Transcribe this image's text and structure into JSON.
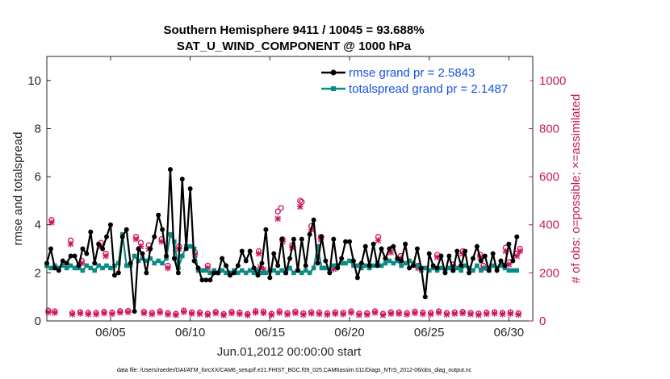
{
  "chart_data": {
    "type": "line",
    "title_line1": "Southern Hemisphere 9411 / 10045 = 93.688%",
    "title_line2": "SAT_U_WIND_COMPONENT @ 1000 hPa",
    "xlabel": "Jun.01,2012 00:00:00 start",
    "ylabel_left": "rmse and totalspread",
    "ylabel_right": "# of obs: o=possible; ×=assimilated",
    "xlim": [
      1,
      31.5
    ],
    "ylim_left": [
      0,
      11
    ],
    "ylim_right": [
      0,
      1100
    ],
    "x_tick_values": [
      5,
      10,
      15,
      20,
      25,
      30
    ],
    "x_tick_labels": [
      "06/05",
      "06/10",
      "06/15",
      "06/20",
      "06/25",
      "06/30"
    ],
    "y_left_ticks": [
      "0",
      "2",
      "4",
      "6",
      "8",
      "10"
    ],
    "y_right_ticks": [
      "0",
      "200",
      "400",
      "600",
      "800",
      "1000"
    ],
    "footer": "data file: /Users/raeder/DAI/ATM_forcXX/CAM6_setup/f.e21.FHIST_BGC.f09_025.CAM6assim.011/Diags_NTrS_2012-06/obs_diag_output.nc",
    "colors": {
      "rmse": "#000000",
      "spread": "#0e8a85",
      "obs": "#d1105c",
      "legend_text": "#1553e0",
      "axis": "#262626"
    },
    "series": [
      {
        "name": "rmse grand pr = 2.5843",
        "x": [
          1.0,
          1.25,
          1.5,
          1.75,
          2.0,
          2.25,
          2.5,
          2.75,
          3.0,
          3.25,
          3.5,
          3.75,
          4.0,
          4.25,
          4.5,
          4.75,
          5.0,
          5.25,
          5.5,
          5.75,
          6.0,
          6.25,
          6.5,
          6.75,
          7.0,
          7.25,
          7.5,
          7.75,
          8.0,
          8.25,
          8.5,
          8.75,
          9.0,
          9.25,
          9.5,
          9.75,
          10.0,
          10.25,
          10.5,
          10.75,
          11.0,
          11.25,
          11.5,
          11.75,
          12.0,
          12.25,
          12.5,
          12.75,
          13.0,
          13.25,
          13.5,
          13.75,
          14.0,
          14.25,
          14.5,
          14.75,
          15.0,
          15.25,
          15.5,
          15.75,
          16.0,
          16.25,
          16.5,
          16.75,
          17.0,
          17.25,
          17.5,
          17.75,
          18.0,
          18.25,
          18.5,
          18.75,
          19.0,
          19.25,
          19.5,
          19.75,
          20.0,
          20.25,
          20.5,
          20.75,
          21.0,
          21.25,
          21.5,
          21.75,
          22.0,
          22.25,
          22.5,
          22.75,
          23.0,
          23.25,
          23.5,
          23.75,
          24.0,
          24.25,
          24.5,
          24.75,
          25.0,
          25.25,
          25.5,
          25.75,
          26.0,
          26.25,
          26.5,
          26.75,
          27.0,
          27.25,
          27.5,
          27.75,
          28.0,
          28.25,
          28.5,
          28.75,
          29.0,
          29.25,
          29.5,
          29.75,
          30.0,
          30.25,
          30.5
        ],
        "values": [
          2.4,
          3.0,
          2.2,
          2.1,
          2.5,
          2.4,
          2.7,
          2.7,
          2.3,
          3.0,
          2.8,
          3.7,
          2.4,
          3.2,
          3.0,
          3.5,
          4.0,
          1.9,
          2.0,
          3.5,
          3.8,
          2.4,
          0.4,
          3.0,
          2.8,
          2.0,
          3.0,
          3.5,
          4.4,
          3.8,
          2.7,
          6.3,
          2.6,
          2.0,
          5.9,
          3.0,
          5.5,
          2.5,
          2.2,
          1.7,
          1.7,
          1.7,
          2.0,
          2.0,
          2.6,
          2.3,
          1.9,
          2.0,
          2.3,
          2.9,
          2.5,
          2.9,
          2.2,
          1.9,
          2.4,
          3.8,
          1.8,
          2.8,
          2.3,
          3.4,
          2.0,
          2.6,
          3.4,
          2.1,
          3.4,
          2.3,
          3.6,
          4.2,
          2.4,
          3.5,
          2.5,
          2.0,
          3.4,
          2.2,
          2.6,
          3.3,
          3.3,
          2.5,
          1.8,
          2.4,
          3.1,
          2.3,
          3.2,
          2.3,
          3.0,
          2.6,
          3.0,
          3.1,
          2.6,
          2.5,
          3.2,
          2.2,
          2.3,
          3.0,
          2.2,
          1.0,
          2.8,
          2.3,
          2.2,
          2.7,
          2.0,
          2.7,
          2.1,
          2.9,
          2.3,
          2.9,
          2.0,
          2.6,
          3.1,
          2.5,
          2.7,
          2.1,
          2.8,
          2.1,
          2.5,
          2.3,
          3.2,
          2.5,
          3.5
        ]
      },
      {
        "name": "totalspread grand pr = 2.1487",
        "x": [
          1.0,
          1.25,
          1.5,
          1.75,
          2.0,
          2.25,
          2.5,
          2.75,
          3.0,
          3.25,
          3.5,
          3.75,
          4.0,
          4.25,
          4.5,
          4.75,
          5.0,
          5.25,
          5.5,
          5.75,
          6.0,
          6.25,
          6.5,
          6.75,
          7.0,
          7.25,
          7.5,
          7.75,
          8.0,
          8.25,
          8.5,
          8.75,
          9.0,
          9.25,
          9.5,
          9.75,
          10.0,
          10.25,
          10.5,
          10.75,
          11.0,
          11.25,
          11.5,
          11.75,
          12.0,
          12.25,
          12.5,
          12.75,
          13.0,
          13.25,
          13.5,
          13.75,
          14.0,
          14.25,
          14.5,
          14.75,
          15.0,
          15.25,
          15.5,
          15.75,
          16.0,
          16.25,
          16.5,
          16.75,
          17.0,
          17.25,
          17.5,
          17.75,
          18.0,
          18.25,
          18.5,
          18.75,
          19.0,
          19.25,
          19.5,
          19.75,
          20.0,
          20.25,
          20.5,
          20.75,
          21.0,
          21.25,
          21.5,
          21.75,
          22.0,
          22.25,
          22.5,
          22.75,
          23.0,
          23.25,
          23.5,
          23.75,
          24.0,
          24.25,
          24.5,
          24.75,
          25.0,
          25.25,
          25.5,
          25.75,
          26.0,
          26.25,
          26.5,
          26.75,
          27.0,
          27.25,
          27.5,
          27.75,
          28.0,
          28.25,
          28.5,
          28.75,
          29.0,
          29.25,
          29.5,
          29.75,
          30.0,
          30.25,
          30.5
        ],
        "values": [
          2.3,
          2.2,
          2.3,
          2.2,
          2.3,
          2.2,
          2.3,
          2.2,
          2.2,
          2.1,
          2.3,
          2.2,
          2.1,
          2.3,
          2.2,
          2.3,
          2.2,
          2.3,
          2.4,
          3.6,
          2.3,
          2.3,
          2.7,
          2.5,
          2.6,
          2.5,
          2.6,
          2.4,
          2.5,
          2.4,
          2.6,
          3.6,
          3.3,
          2.2,
          2.7,
          3.1,
          3.1,
          3.0,
          2.1,
          2.1,
          2.1,
          2.0,
          2.1,
          2.0,
          2.1,
          2.0,
          2.0,
          2.1,
          2.0,
          2.1,
          2.0,
          2.1,
          2.0,
          2.1,
          2.0,
          2.0,
          2.1,
          2.1,
          2.0,
          2.1,
          2.0,
          2.2,
          2.0,
          2.1,
          2.0,
          2.1,
          2.0,
          2.2,
          3.1,
          2.2,
          2.2,
          2.1,
          2.3,
          2.3,
          2.4,
          2.4,
          2.5,
          2.3,
          2.3,
          2.2,
          2.3,
          2.2,
          2.3,
          2.4,
          2.3,
          2.4,
          2.5,
          2.4,
          2.5,
          2.3,
          2.4,
          2.5,
          2.4,
          2.3,
          2.1,
          2.2,
          2.1,
          2.2,
          2.1,
          2.2,
          2.1,
          2.2,
          2.1,
          2.2,
          2.1,
          2.3,
          2.2,
          2.1,
          2.3,
          2.1,
          2.2,
          2.1,
          2.3,
          2.2,
          2.3,
          2.2,
          2.1,
          2.1,
          2.1
        ]
      }
    ],
    "obs_series": [
      {
        "name": "possible",
        "marker": "o",
        "points": [
          [
            1.1,
            43
          ],
          [
            1.5,
            40
          ],
          [
            2.6,
            33
          ],
          [
            3.1,
            37
          ],
          [
            3.6,
            34
          ],
          [
            4.1,
            34
          ],
          [
            4.6,
            38
          ],
          [
            5.1,
            35
          ],
          [
            5.6,
            41
          ],
          [
            6.1,
            42
          ],
          [
            7.1,
            38
          ],
          [
            7.6,
            34
          ],
          [
            8.1,
            40
          ],
          [
            8.6,
            33
          ],
          [
            9.1,
            30
          ],
          [
            9.6,
            43
          ],
          [
            10.1,
            36
          ],
          [
            10.6,
            35
          ],
          [
            11.1,
            30
          ],
          [
            11.6,
            38
          ],
          [
            12.1,
            29
          ],
          [
            12.6,
            38
          ],
          [
            13.1,
            35
          ],
          [
            13.6,
            29
          ],
          [
            14.1,
            41
          ],
          [
            14.6,
            39
          ],
          [
            15.1,
            30
          ],
          [
            15.6,
            40
          ],
          [
            16.1,
            33
          ],
          [
            16.6,
            39
          ],
          [
            17.1,
            32
          ],
          [
            17.6,
            37
          ],
          [
            18.1,
            35
          ],
          [
            18.6,
            32
          ],
          [
            19.1,
            36
          ],
          [
            19.6,
            34
          ],
          [
            20.1,
            40
          ],
          [
            20.6,
            31
          ],
          [
            21.1,
            32
          ],
          [
            21.6,
            40
          ],
          [
            22.1,
            30
          ],
          [
            22.6,
            36
          ],
          [
            23.1,
            36
          ],
          [
            23.6,
            33
          ],
          [
            24.1,
            39
          ],
          [
            24.6,
            35
          ],
          [
            25.1,
            34
          ],
          [
            25.6,
            40
          ],
          [
            26.1,
            33
          ],
          [
            26.6,
            36
          ],
          [
            27.1,
            38
          ],
          [
            27.6,
            34
          ],
          [
            28.1,
            31
          ],
          [
            28.6,
            35
          ],
          [
            29.1,
            37
          ],
          [
            29.6,
            34
          ],
          [
            30.1,
            36
          ],
          [
            30.6,
            32
          ],
          [
            1.3,
            420
          ],
          [
            2.5,
            335
          ],
          [
            3.2,
            250
          ],
          [
            4.4,
            325
          ],
          [
            4.7,
            280
          ],
          [
            6.6,
            350
          ],
          [
            6.9,
            325
          ],
          [
            7.4,
            315
          ],
          [
            8.2,
            340
          ],
          [
            8.6,
            230
          ],
          [
            9.3,
            310
          ],
          [
            10.3,
            285
          ],
          [
            11.1,
            230
          ],
          [
            14.3,
            290
          ],
          [
            15.5,
            455
          ],
          [
            15.7,
            470
          ],
          [
            15.8,
            340
          ],
          [
            16.9,
            500
          ],
          [
            16.4,
            315
          ],
          [
            17.0,
            495
          ],
          [
            17.6,
            395
          ],
          [
            18.2,
            350
          ],
          [
            19.0,
            225
          ],
          [
            21.8,
            350
          ],
          [
            22.6,
            300
          ],
          [
            23.2,
            270
          ],
          [
            24.3,
            230
          ],
          [
            25.5,
            275
          ],
          [
            26.5,
            235
          ],
          [
            27.1,
            290
          ],
          [
            28.2,
            275
          ],
          [
            28.4,
            230
          ],
          [
            29.8,
            305
          ],
          [
            30.0,
            245
          ],
          [
            30.5,
            280
          ],
          [
            30.7,
            300
          ]
        ]
      },
      {
        "name": "assimilated",
        "marker": "x",
        "points": [
          [
            1.1,
            36
          ],
          [
            1.5,
            34
          ],
          [
            2.6,
            28
          ],
          [
            3.1,
            31
          ],
          [
            3.6,
            28
          ],
          [
            4.1,
            28
          ],
          [
            4.6,
            32
          ],
          [
            5.1,
            29
          ],
          [
            5.6,
            35
          ],
          [
            6.1,
            36
          ],
          [
            7.1,
            32
          ],
          [
            7.6,
            28
          ],
          [
            8.1,
            34
          ],
          [
            8.6,
            27
          ],
          [
            9.1,
            25
          ],
          [
            9.6,
            37
          ],
          [
            10.1,
            30
          ],
          [
            10.6,
            29
          ],
          [
            11.1,
            25
          ],
          [
            11.6,
            32
          ],
          [
            12.1,
            24
          ],
          [
            12.6,
            32
          ],
          [
            13.1,
            29
          ],
          [
            13.6,
            24
          ],
          [
            14.1,
            35
          ],
          [
            14.6,
            33
          ],
          [
            15.1,
            25
          ],
          [
            15.6,
            34
          ],
          [
            16.1,
            27
          ],
          [
            16.6,
            33
          ],
          [
            17.1,
            26
          ],
          [
            17.6,
            31
          ],
          [
            18.1,
            29
          ],
          [
            18.6,
            26
          ],
          [
            19.1,
            30
          ],
          [
            19.6,
            28
          ],
          [
            20.1,
            34
          ],
          [
            20.6,
            25
          ],
          [
            21.1,
            26
          ],
          [
            21.6,
            34
          ],
          [
            22.1,
            24
          ],
          [
            22.6,
            30
          ],
          [
            23.1,
            30
          ],
          [
            23.6,
            27
          ],
          [
            24.1,
            33
          ],
          [
            24.6,
            29
          ],
          [
            25.1,
            28
          ],
          [
            25.6,
            34
          ],
          [
            26.1,
            27
          ],
          [
            26.6,
            30
          ],
          [
            27.1,
            32
          ],
          [
            27.6,
            28
          ],
          [
            28.1,
            25
          ],
          [
            28.6,
            29
          ],
          [
            29.1,
            31
          ],
          [
            29.6,
            28
          ],
          [
            30.1,
            30
          ],
          [
            30.6,
            26
          ],
          [
            1.3,
            410
          ],
          [
            2.5,
            320
          ],
          [
            3.2,
            240
          ],
          [
            4.4,
            310
          ],
          [
            4.7,
            270
          ],
          [
            6.6,
            340
          ],
          [
            6.9,
            310
          ],
          [
            7.4,
            300
          ],
          [
            8.2,
            330
          ],
          [
            8.6,
            220
          ],
          [
            9.3,
            300
          ],
          [
            10.3,
            275
          ],
          [
            11.1,
            220
          ],
          [
            14.3,
            280
          ],
          [
            15.5,
            425
          ],
          [
            15.8,
            330
          ],
          [
            16.9,
            475
          ],
          [
            16.4,
            305
          ],
          [
            17.6,
            380
          ],
          [
            18.2,
            340
          ],
          [
            19.0,
            215
          ],
          [
            21.8,
            335
          ],
          [
            22.6,
            285
          ],
          [
            23.2,
            260
          ],
          [
            24.3,
            220
          ],
          [
            25.5,
            265
          ],
          [
            26.5,
            225
          ],
          [
            27.1,
            280
          ],
          [
            28.2,
            265
          ],
          [
            28.4,
            220
          ],
          [
            29.8,
            290
          ],
          [
            30.0,
            235
          ],
          [
            30.5,
            270
          ],
          [
            30.7,
            290
          ],
          [
            14.4,
            225
          ],
          [
            14.6,
            215
          ]
        ]
      }
    ]
  }
}
